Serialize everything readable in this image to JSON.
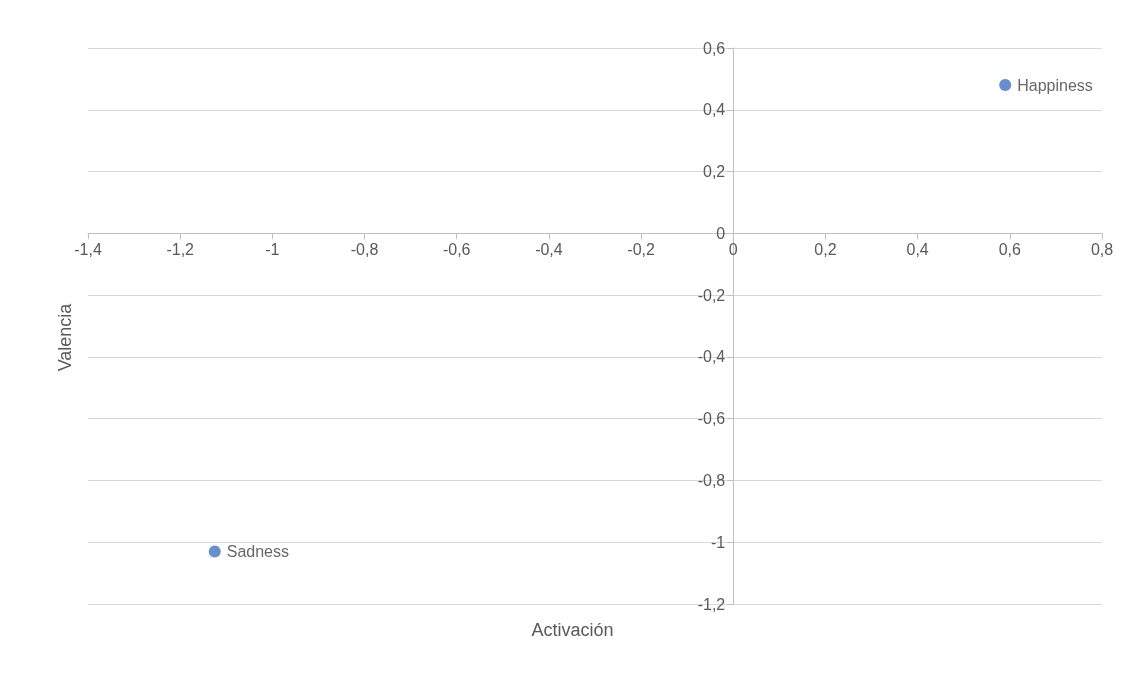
{
  "chart_data": {
    "type": "scatter",
    "xlabel": "Activación",
    "ylabel": "Valencia",
    "x": [
      0.59,
      -1.125
    ],
    "values": [
      0.48,
      -1.03
    ],
    "color": "#4472c4",
    "marker": "circle",
    "xlim": [
      -1.4,
      0.8
    ],
    "xticks": [
      {
        "value": -1.4,
        "label": "-1,4"
      },
      {
        "value": -1.2,
        "label": "-1,2"
      },
      -1,
      {
        "value": -0.8,
        "label": "-0,8"
      },
      {
        "value": -0.6,
        "label": "-0,6"
      },
      {
        "value": -0.4,
        "label": "-0,4"
      },
      {
        "value": -0.2,
        "label": "-0,2"
      },
      0,
      {
        "value": 0.2,
        "label": "0,2"
      },
      {
        "value": 0.4,
        "label": "0,4"
      },
      {
        "value": 0.6,
        "label": "0,6"
      },
      {
        "value": 0.8,
        "label": "0,8"
      }
    ],
    "ylim": [
      -1.2,
      0.6
    ],
    "yticks": [
      {
        "value": -1.2,
        "label": "-1,2"
      },
      -1,
      {
        "value": -0.8,
        "label": "-0,8"
      },
      {
        "value": -0.6,
        "label": "-0,6"
      },
      {
        "value": -0.4,
        "label": "-0,4"
      },
      {
        "value": -0.2,
        "label": "-0,2"
      },
      0,
      {
        "value": 0.2,
        "label": "0,2"
      },
      {
        "value": 0.4,
        "label": "0,4"
      },
      {
        "value": 0.6,
        "label": "0,6"
      }
    ],
    "grid": "y",
    "annotations": [
      {
        "text": "Happiness",
        "x": 0.59,
        "y": 0.48
      },
      {
        "text": "Sadness",
        "x": -1.125,
        "y": -1.03
      }
    ]
  }
}
